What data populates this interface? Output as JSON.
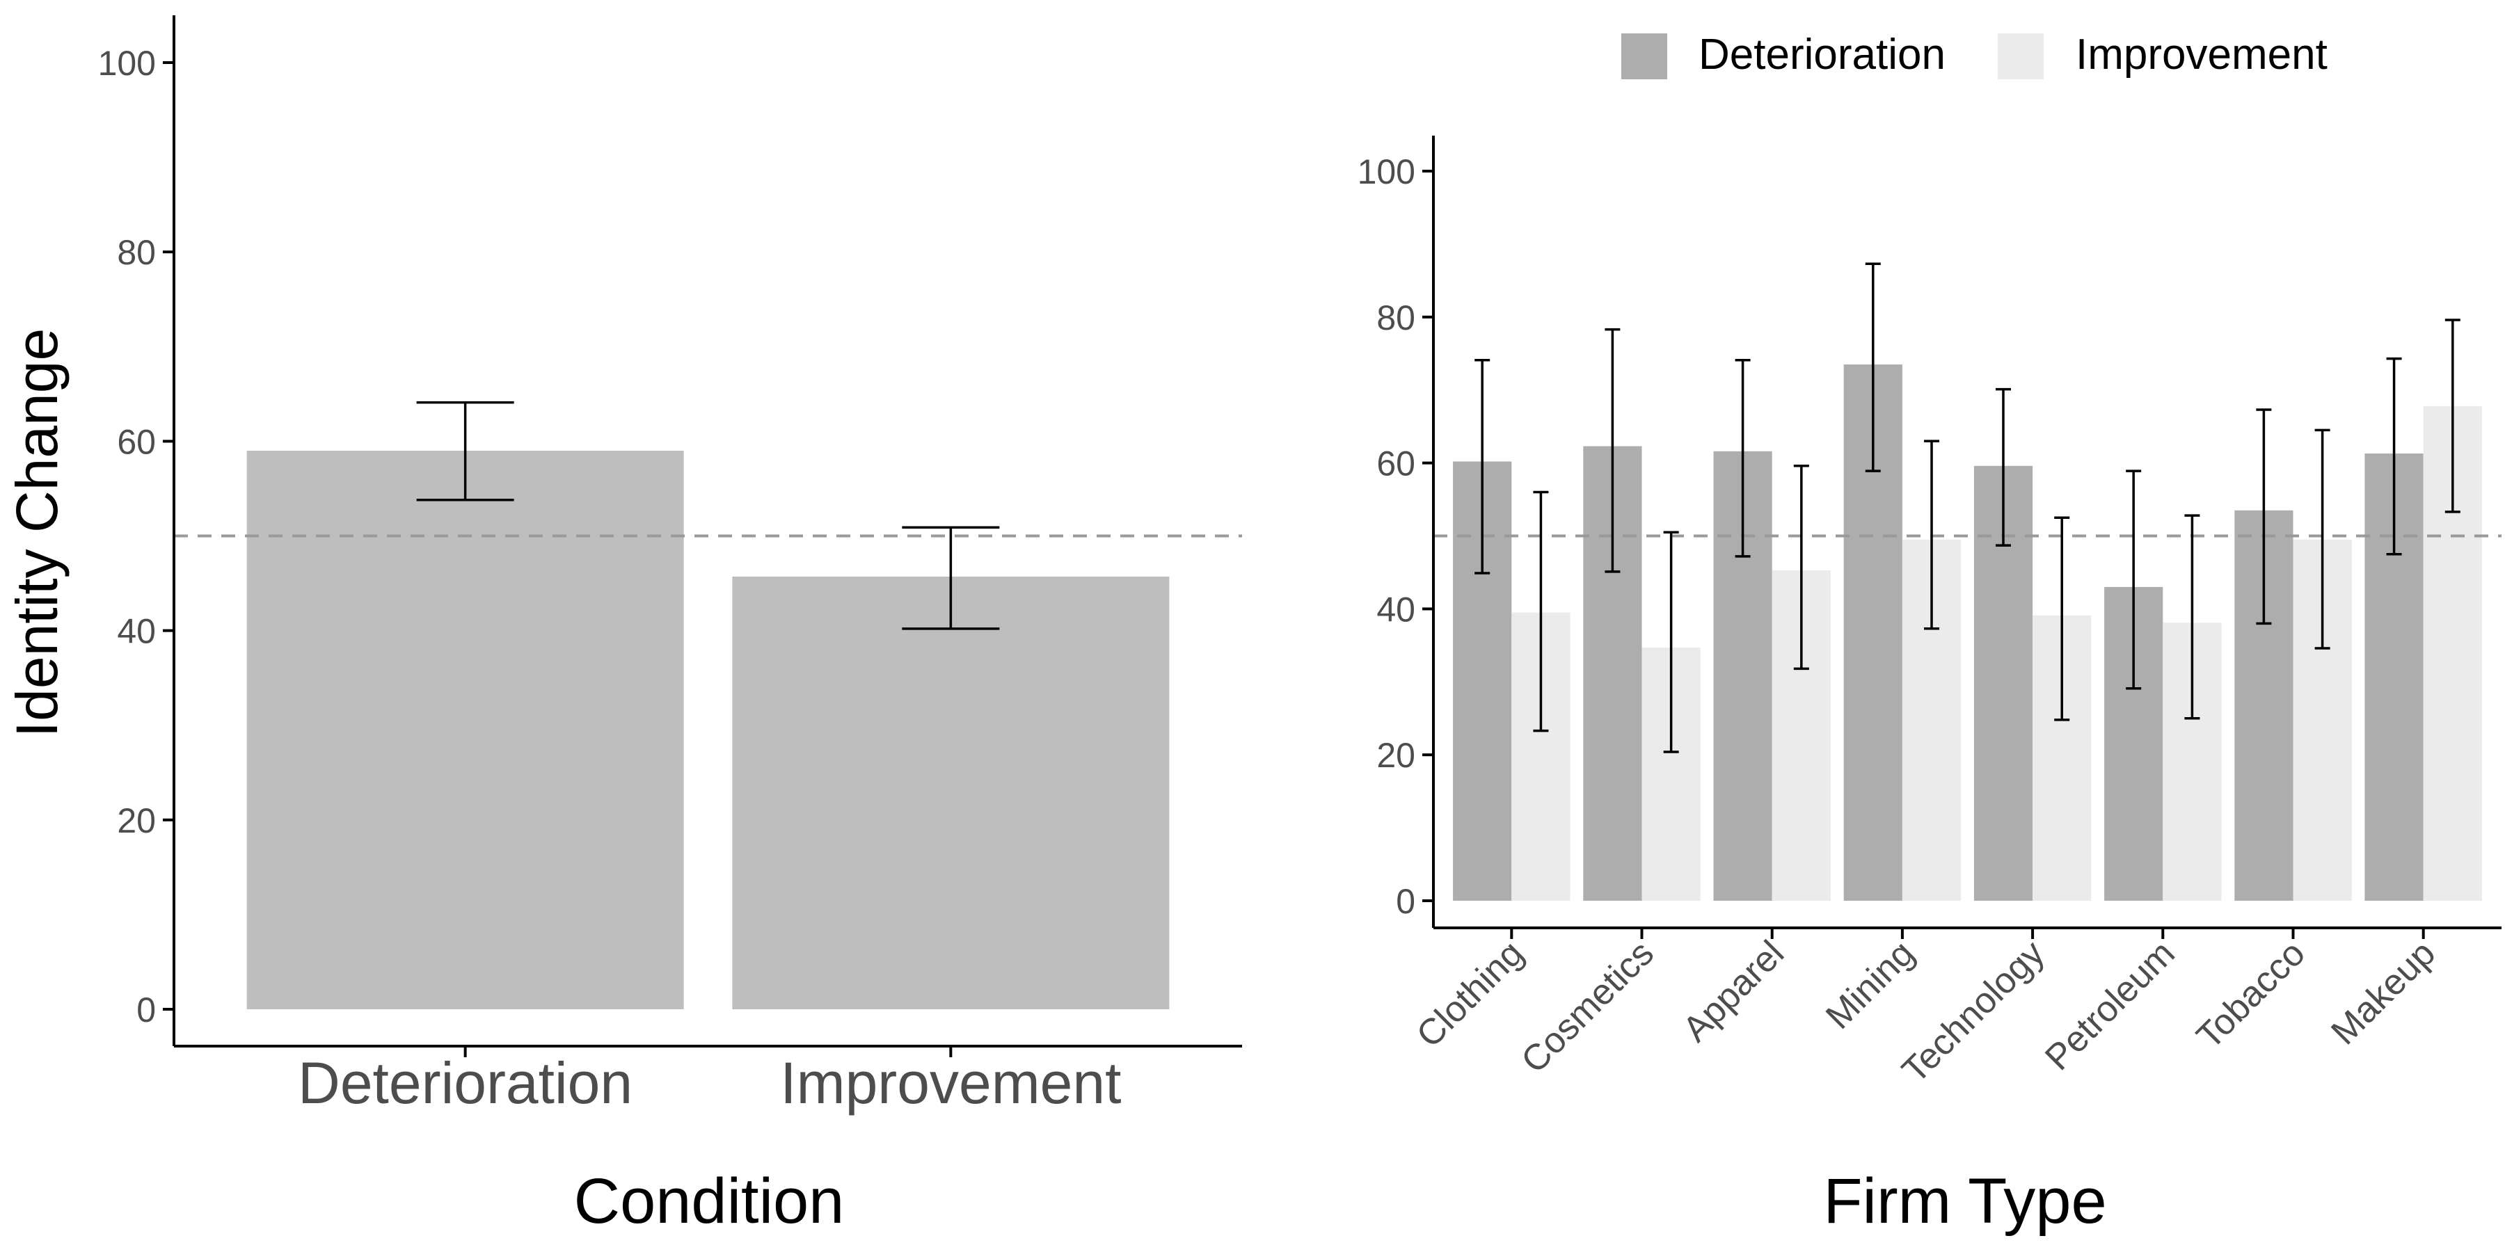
{
  "colors": {
    "bar_left": "#bebebe",
    "deterioration": "#adadad",
    "improvement": "#ebebeb",
    "reference_line": "#999999",
    "axis": "#000000",
    "tick_text": "#4d4d4d"
  },
  "chart_data": [
    {
      "type": "bar",
      "panel": "left",
      "xlabel": "Condition",
      "ylabel": "Identity Change",
      "ylim": [
        0,
        100
      ],
      "yticks": [
        "0",
        "20",
        "40",
        "60",
        "80",
        "100"
      ],
      "reference_line": 50,
      "categories": [
        "Deterioration",
        "Improvement"
      ],
      "series": [
        {
          "values": [
            59,
            45.7
          ],
          "error_low": [
            53.8,
            40.2
          ],
          "error_high": [
            64.1,
            50.9
          ]
        }
      ],
      "legend": "none",
      "grid": false
    },
    {
      "type": "bar",
      "panel": "right",
      "xlabel": "Firm Type",
      "ylabel": "",
      "ylim": [
        0,
        100
      ],
      "yticks": [
        "0",
        "20",
        "40",
        "60",
        "80",
        "100"
      ],
      "reference_line": 50,
      "categories": [
        "Clothing",
        "Cosmetics",
        "Apparel",
        "Mining",
        "Technology",
        "Petroleum",
        "Tobacco",
        "Makeup"
      ],
      "series": [
        {
          "name": "Deterioration",
          "values": [
            60.2,
            62.3,
            61.6,
            73.5,
            59.6,
            43,
            53.5,
            61.3
          ],
          "error_low": [
            44.9,
            45.1,
            47.2,
            58.9,
            48.7,
            29.1,
            38,
            47.5
          ],
          "error_high": [
            74.1,
            78.3,
            74.1,
            87.3,
            70.1,
            58.9,
            67.3,
            74.3
          ]
        },
        {
          "name": "Improvement",
          "values": [
            39.5,
            34.7,
            45.3,
            49.5,
            39.1,
            38.1,
            49.5,
            67.8
          ],
          "error_low": [
            23.3,
            20.4,
            31.8,
            37.3,
            24.8,
            25,
            34.6,
            53.3
          ],
          "error_high": [
            56,
            50.5,
            59.6,
            63,
            52.5,
            52.8,
            64.5,
            79.6
          ]
        }
      ],
      "legend": "top",
      "grid": false
    }
  ]
}
